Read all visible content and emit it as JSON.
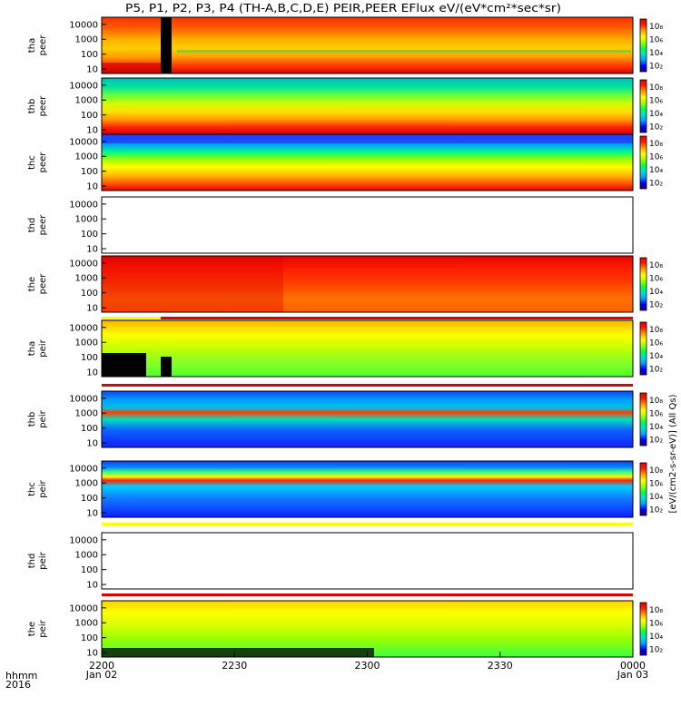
{
  "chart_data": {
    "type": "heatmap",
    "title": "P5, P1, P2, P3, P4 (TH-A,B,C,D,E) PEIR,PEER EFlux eV/(eV*cm²*sec*sr)",
    "x_axis": {
      "row_label_1": "hhmm",
      "row_label_2": "2016",
      "ticks": [
        {
          "value": "2200",
          "date": "Jan 02"
        },
        {
          "value": "2230",
          "date": ""
        },
        {
          "value": "2300",
          "date": ""
        },
        {
          "value": "2330",
          "date": ""
        },
        {
          "value": "0000",
          "date": "Jan 03"
        }
      ]
    },
    "y_axis": {
      "scale": "log",
      "range": [
        5,
        30000
      ],
      "ticks": [
        "10",
        "100",
        "1000",
        "10000"
      ]
    },
    "colorbar": {
      "scale": "log",
      "ticks": [
        "10₂",
        "10₄",
        "10₆",
        "10₈"
      ],
      "colors": [
        "#200080",
        "#0000ff",
        "#00a0ff",
        "#00e0d0",
        "#00ff40",
        "#a0ff00",
        "#ffff00",
        "#ffa000",
        "#ff2000",
        "#e00000"
      ]
    },
    "colorbar_label": "[eV/(cm2-s-sr-eV)] (All Qs)",
    "panels": [
      {
        "probe": "tha",
        "species": "peer",
        "profile": "tha_peer",
        "colorbar": true
      },
      {
        "probe": "thb",
        "species": "peer",
        "profile": "thb_peer",
        "colorbar": true
      },
      {
        "probe": "thc",
        "species": "peer",
        "profile": "thc_peer",
        "colorbar": true
      },
      {
        "probe": "thd",
        "species": "peer",
        "profile": "empty",
        "colorbar": false
      },
      {
        "probe": "the",
        "species": "peer",
        "profile": "the_peer",
        "colorbar": true
      },
      {
        "probe": "tha",
        "species": "peir",
        "profile": "tha_peir",
        "colorbar": true
      },
      {
        "probe": "thb",
        "species": "peir",
        "profile": "thb_peir",
        "colorbar": true
      },
      {
        "probe": "thc",
        "species": "peir",
        "profile": "thc_peir",
        "colorbar": true
      },
      {
        "probe": "thd",
        "species": "peir",
        "profile": "empty",
        "colorbar": false
      },
      {
        "probe": "the",
        "species": "peir",
        "profile": "the_peir",
        "colorbar": true
      }
    ]
  }
}
